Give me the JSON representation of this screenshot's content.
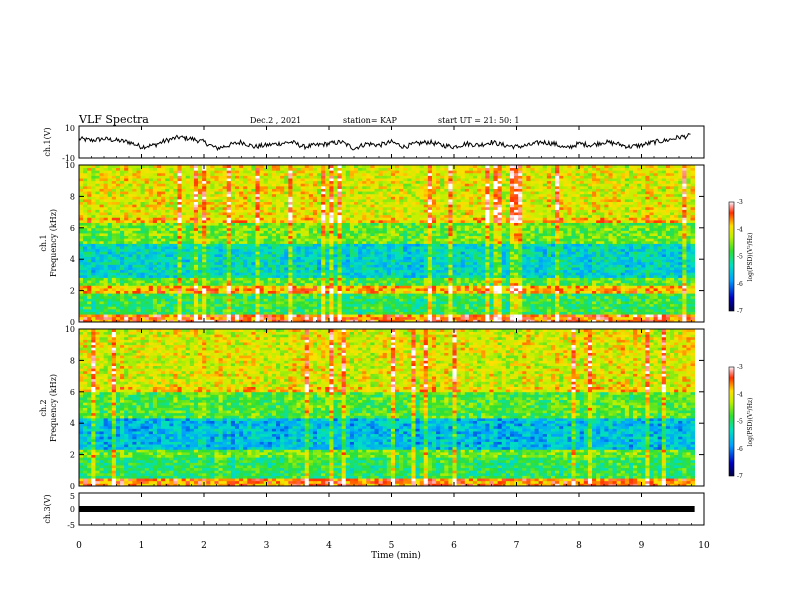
{
  "header": {
    "title": "VLF Spectra",
    "date": "Dec.2 , 2021",
    "station": "station= KAP",
    "start": "start UT = 21: 50: 1"
  },
  "colors": {
    "frame": "#000000",
    "waveform": "#000000",
    "spectrogram_low": "#0000a0",
    "spectrogram_mid": "#30e030",
    "spectrogram_high": "#d00000"
  },
  "chart_data": [
    {
      "type": "line",
      "panel": "ch1-waveform",
      "ylabel": "ch.1(V)",
      "ylim": [
        -10,
        10
      ],
      "y_ticks": [
        "10",
        "-10"
      ],
      "xlim": [
        0,
        9.85
      ],
      "x": [
        0,
        0.2,
        0.4,
        0.6,
        0.8,
        1.0,
        1.2,
        1.4,
        1.6,
        1.8,
        2.0,
        2.2,
        2.4,
        2.6,
        2.8,
        3.0,
        3.2,
        3.4,
        3.6,
        3.8,
        4.0,
        4.2,
        4.4,
        4.6,
        4.8,
        5.0,
        5.2,
        5.4,
        5.6,
        5.8,
        6.0,
        6.2,
        6.4,
        6.6,
        6.8,
        7.0,
        7.2,
        7.4,
        7.6,
        7.8,
        8.0,
        8.2,
        8.4,
        8.6,
        8.8,
        9.0,
        9.2,
        9.4,
        9.6,
        9.8
      ],
      "values": [
        2,
        1,
        2,
        1,
        0,
        -3,
        -2,
        1,
        3,
        2,
        0,
        -4,
        -2,
        0,
        -3,
        -2,
        -1,
        0,
        -3,
        -2,
        -1,
        0,
        -4,
        -1,
        -2,
        0,
        -3,
        -1,
        0,
        -2,
        -3,
        -1,
        -2,
        0,
        -2,
        -3,
        -2,
        0,
        -1,
        -4,
        -1,
        -2,
        0,
        -1,
        -3,
        -2,
        0,
        1,
        3,
        4
      ]
    },
    {
      "type": "heatmap",
      "panel": "ch1-spectrogram",
      "ylabel": "ch.1\nFrequency (kHz)",
      "ylabel_line1": "ch.1",
      "ylabel_line2": "Frequency (kHz)",
      "ylim": [
        0,
        10
      ],
      "y_ticks": [
        "0",
        "2",
        "4",
        "6",
        "8",
        "10"
      ],
      "xlim": [
        0,
        9.85
      ],
      "colorbar": {
        "label": "log(PSD)(V²/Hz)",
        "range": [
          -7,
          -3
        ],
        "ticks": [
          "-3",
          "-4",
          "-5",
          "-6",
          "-7"
        ]
      },
      "band_levels": [
        {
          "f": [
            0.0,
            0.5
          ],
          "level": -3.5
        },
        {
          "f": [
            0.5,
            1.9
          ],
          "level": -4.9
        },
        {
          "f": [
            1.9,
            2.3
          ],
          "level": -3.8
        },
        {
          "f": [
            2.3,
            2.8
          ],
          "level": -4.7
        },
        {
          "f": [
            2.8,
            5.0
          ],
          "level": -5.4
        },
        {
          "f": [
            5.0,
            6.3
          ],
          "level": -4.6
        },
        {
          "f": [
            6.3,
            6.7
          ],
          "level": -3.8
        },
        {
          "f": [
            6.7,
            10.0
          ],
          "level": -4.1
        }
      ]
    },
    {
      "type": "heatmap",
      "panel": "ch2-spectrogram",
      "ylabel": "ch.2\nFrequency (kHz)",
      "ylabel_line1": "ch.2",
      "ylabel_line2": "Frequency (kHz)",
      "ylim": [
        0,
        10
      ],
      "y_ticks": [
        "0",
        "2",
        "4",
        "6",
        "8",
        "10"
      ],
      "xlim": [
        0,
        9.85
      ],
      "colorbar": {
        "label": "log(PSD)(V²/Hz)",
        "range": [
          -7,
          -3
        ],
        "ticks": [
          "-3",
          "-4",
          "-5",
          "-6",
          "-7"
        ]
      },
      "band_levels": [
        {
          "f": [
            0.0,
            0.5
          ],
          "level": -3.6
        },
        {
          "f": [
            0.5,
            1.8
          ],
          "level": -4.9
        },
        {
          "f": [
            1.8,
            2.4
          ],
          "level": -4.6
        },
        {
          "f": [
            2.4,
            4.4
          ],
          "level": -5.6
        },
        {
          "f": [
            4.4,
            6.0
          ],
          "level": -4.7
        },
        {
          "f": [
            6.0,
            6.4
          ],
          "level": -3.9
        },
        {
          "f": [
            6.4,
            10.0
          ],
          "level": -4.1
        }
      ]
    },
    {
      "type": "line",
      "panel": "ch3-waveform",
      "ylabel": "ch.3(V)",
      "ylim": [
        -5,
        5
      ],
      "y_ticks": [
        "5",
        "0",
        "-5"
      ],
      "xlim": [
        0,
        9.85
      ],
      "x": [
        0,
        9.85
      ],
      "values": [
        0,
        0
      ]
    }
  ],
  "x_axis": {
    "label": "Time (min)",
    "ticks": [
      "0",
      "1",
      "2",
      "3",
      "4",
      "5",
      "6",
      "7",
      "8",
      "9",
      "10"
    ],
    "range": [
      0,
      10
    ]
  }
}
